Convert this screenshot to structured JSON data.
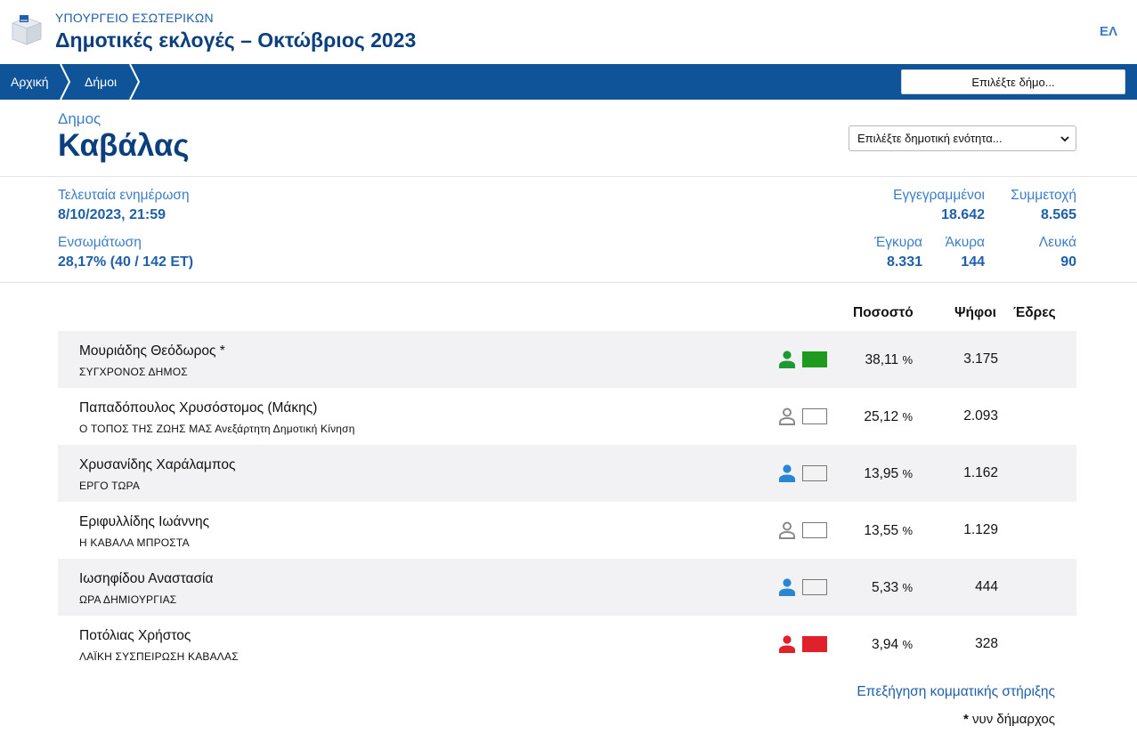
{
  "header": {
    "ministry": "ΥΠΟΥΡΓΕΙΟ ΕΣΩΤΕΡΙΚΩΝ",
    "title": "Δημοτικές εκλογές – Οκτώβριος 2023",
    "lang": "ΕΛ"
  },
  "nav": {
    "home": "Αρχική",
    "municipalities": "Δήμοι",
    "picker": "Επιλέξτε δήμο..."
  },
  "municipality": {
    "label": "Δημος",
    "name": "Καβάλας",
    "unit_select": "Επιλέξτε δημοτική ενότητα..."
  },
  "stats": {
    "updated_label": "Τελευταία ενημέρωση",
    "updated_value": "8/10/2023, 21:59",
    "integration_label": "Ενσωμάτωση",
    "integration_value": "28,17% (40 / 142 ΕΤ)",
    "registered_label": "Εγγεγραμμένοι",
    "registered_value": "18.642",
    "turnout_label": "Συμμετοχή",
    "turnout_value": "8.565",
    "valid_label": "Έγκυρα",
    "valid_value": "8.331",
    "invalid_label": "Άκυρα",
    "invalid_value": "144",
    "blank_label": "Λευκά",
    "blank_value": "90"
  },
  "table": {
    "col_percent": "Ποσοστό",
    "col_votes": "Ψήφοι",
    "col_seats": "Έδρες",
    "percent_sign": "%",
    "rows": [
      {
        "name": "Μουριάδης Θεόδωρος *",
        "party": "ΣΥΓΧΡΟΝΟΣ ΔΗΜΟΣ",
        "percent": "38,11",
        "votes": "3.175",
        "icon_color": "#1e9a34",
        "swatch": "#1e9a1e"
      },
      {
        "name": "Παπαδόπουλος Χρυσόστομος (Μάκης)",
        "party": "Ο ΤΟΠΟΣ ΤΗΣ ΖΩΗΣ ΜΑΣ Ανεξάρτητη Δημοτική Κίνηση",
        "percent": "25,12",
        "votes": "2.093",
        "icon_color": "outline",
        "swatch": "#ffffff"
      },
      {
        "name": "Χρυσανίδης Χαράλαμπος",
        "party": "ΕΡΓΟ ΤΩΡΑ",
        "percent": "13,95",
        "votes": "1.162",
        "icon_color": "#2a86d4",
        "swatch": "#f2f2f2"
      },
      {
        "name": "Εριφυλλίδης Ιωάννης",
        "party": "Η ΚΑΒΑΛΑ ΜΠΡΟΣΤΑ",
        "percent": "13,55",
        "votes": "1.129",
        "icon_color": "outline",
        "swatch": "#ffffff"
      },
      {
        "name": "Ιωσηφίδου Αναστασία",
        "party": "ΩΡΑ ΔΗΜΙΟΥΡΓΙΑΣ",
        "percent": "5,33",
        "votes": "444",
        "icon_color": "#2a86d4",
        "swatch": "#f2f2f2"
      },
      {
        "name": "Ποτόλιας Χρήστος",
        "party": "ΛΑΪΚΗ ΣΥΣΠΕΙΡΩΣΗ ΚΑΒΑΛΑΣ",
        "percent": "3,94",
        "votes": "328",
        "icon_color": "#e0202a",
        "swatch": "#e0202a"
      }
    ]
  },
  "footer": {
    "link": "Επεξήγηση κομματικής στήριξης",
    "note_star": "*",
    "note_text": " νυν δήμαρχος"
  }
}
